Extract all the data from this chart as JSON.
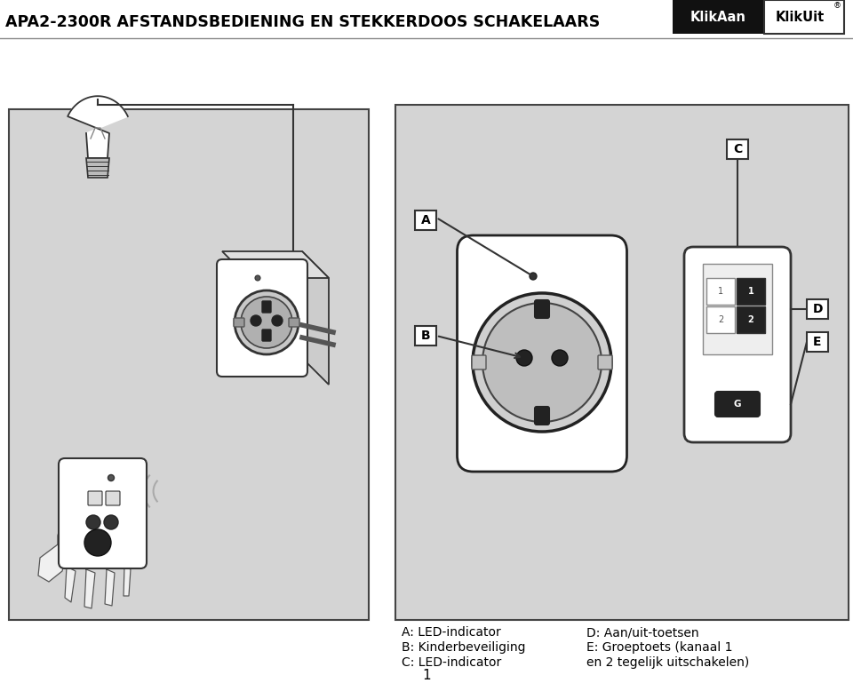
{
  "title": "APA2-2300R AFSTANDSBEDIENING EN STEKKERDOOS SCHAKELAARS",
  "title_fontsize": 12.5,
  "page_bg": "#ffffff",
  "left_panel_bg": "#d4d4d4",
  "right_panel_bg": "#d4d4d4",
  "caption_left_col": [
    "A: LED-indicator",
    "B: Kinderbeveiliging",
    "C: LED-indicator"
  ],
  "caption_right_col": [
    "D: Aan/uit-toetsen",
    "E: Groeptoets (kanaal 1",
    "en 2 tegelijk uitschakelen)"
  ],
  "page_number": "1",
  "logo_text1": "KlikAan",
  "logo_text2": "KlikUit"
}
